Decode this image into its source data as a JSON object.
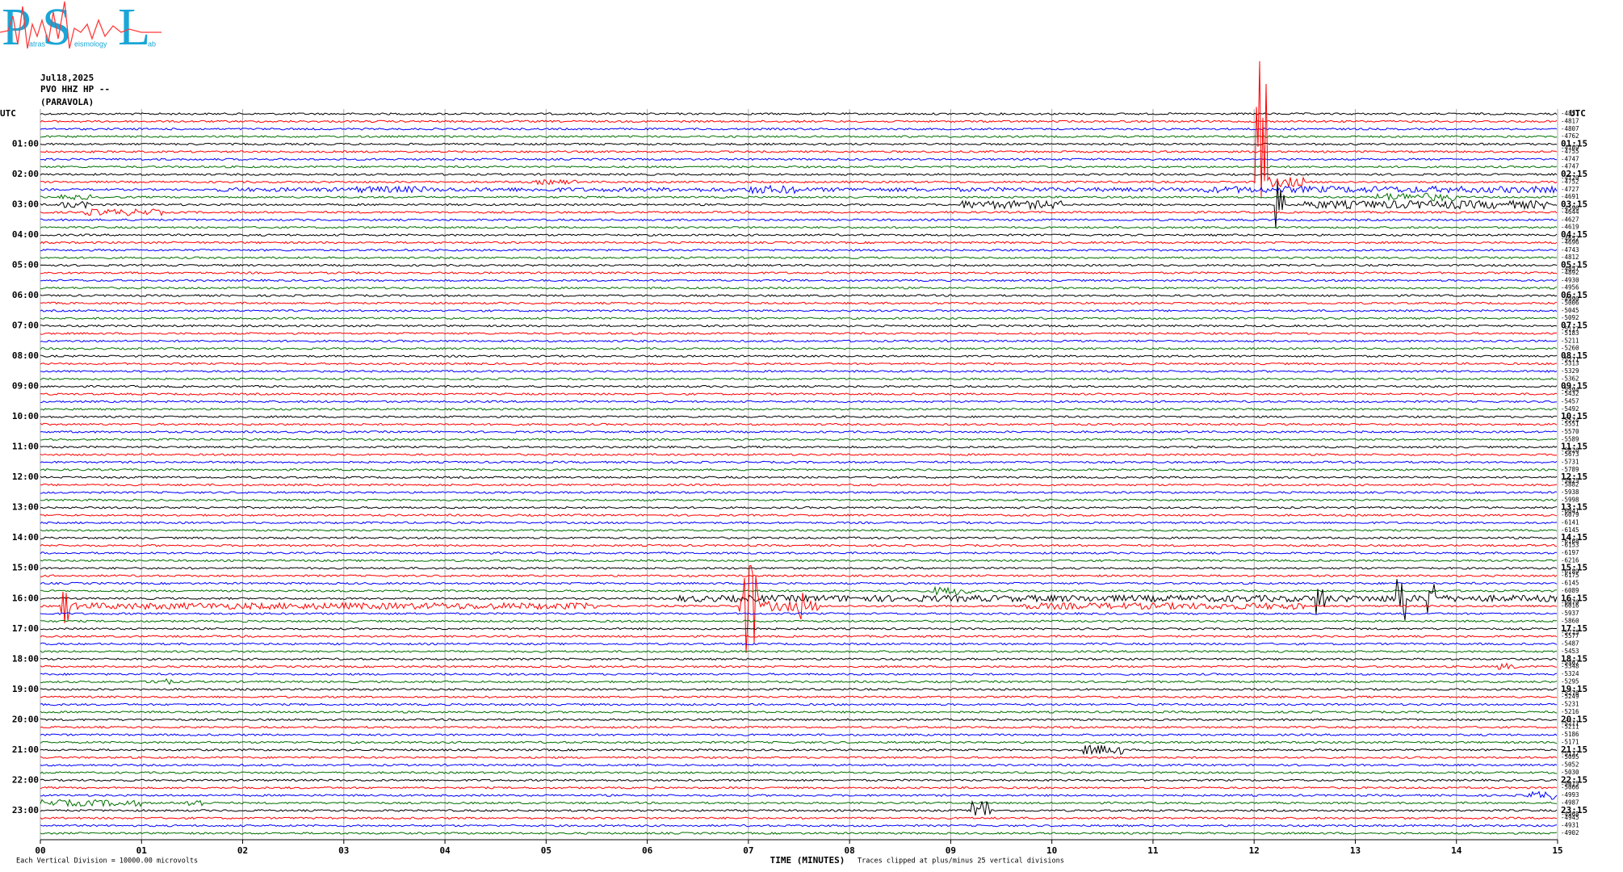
{
  "chart_data": {
    "type": "helicorder",
    "logo": {
      "letters": [
        "P",
        "S",
        "L"
      ],
      "words": [
        "atras",
        "eismology",
        "ab"
      ]
    },
    "date": "Jul18,2025",
    "station": "PVO HHZ HP --",
    "location": "(PARAVOLA)",
    "left_labels": [
      "UTC",
      "01:00",
      "02:00",
      "03:00",
      "04:00",
      "05:00",
      "06:00",
      "07:00",
      "08:00",
      "09:00",
      "10:00",
      "11:00",
      "12:00",
      "13:00",
      "14:00",
      "15:00",
      "16:00",
      "17:00",
      "18:00",
      "19:00",
      "20:00",
      "21:00",
      "22:00",
      "23:00"
    ],
    "right_labels": [
      "UTC",
      "01:15",
      "02:15",
      "03:15",
      "04:15",
      "05:15",
      "06:15",
      "07:15",
      "08:15",
      "09:15",
      "10:15",
      "11:15",
      "12:15",
      "13:15",
      "14:15",
      "15:15",
      "16:15",
      "17:15",
      "18:15",
      "19:15",
      "20:15",
      "21:15",
      "22:15",
      "23:15"
    ],
    "trace_offsets": [
      -4851,
      -4817,
      -4807,
      -4762,
      -4769,
      -4755,
      -4747,
      -4747,
      -4720,
      -4752,
      -4727,
      -4691,
      -4596,
      -4644,
      -4627,
      -4619,
      -4652,
      -4696,
      -4743,
      -4812,
      -4857,
      -4892,
      -4930,
      -4956,
      -4990,
      -5006,
      -5045,
      -5092,
      -5117,
      -5183,
      -5211,
      -5260,
      -5271,
      -5313,
      -5329,
      -5362,
      -5394,
      -5432,
      -5457,
      -5492,
      -5524,
      -5551,
      -5570,
      -5589,
      -5626,
      -5673,
      -5731,
      -5789,
      -5825,
      -5882,
      -5938,
      -5998,
      -6041,
      -6079,
      -6141,
      -6145,
      -6168,
      -6153,
      -6197,
      -6216,
      -6189,
      -6175,
      -6145,
      -6089,
      -6070,
      -6016,
      -5937,
      -5860,
      -5715,
      -5577,
      -5487,
      -5453,
      -5367,
      -5348,
      -5324,
      -5295,
      -5276,
      -5249,
      -5231,
      -5216,
      -5211,
      -5211,
      -5186,
      -5171,
      -5137,
      -5095,
      -5052,
      -5030,
      -5015,
      -5066,
      -4993,
      -4987,
      -4968,
      -4945,
      -4931,
      -4902
    ],
    "colors": [
      "#000000",
      "#ff0000",
      "#0000ff",
      "#007000"
    ],
    "xlim": [
      0,
      15
    ],
    "xticks": [
      {
        "value": 0,
        "label": "00"
      },
      {
        "value": 1,
        "label": "01"
      },
      {
        "value": 2,
        "label": "02"
      },
      {
        "value": 3,
        "label": "03"
      },
      {
        "value": 4,
        "label": "04"
      },
      {
        "value": 5,
        "label": "05"
      },
      {
        "value": 6,
        "label": "06"
      },
      {
        "value": 7,
        "label": "07"
      },
      {
        "value": 8,
        "label": "08"
      },
      {
        "value": 9,
        "label": "09"
      },
      {
        "value": 10,
        "label": "10"
      },
      {
        "value": 11,
        "label": "11"
      },
      {
        "value": 12,
        "label": "12"
      },
      {
        "value": 13,
        "label": "13"
      },
      {
        "value": 14,
        "label": "14"
      },
      {
        "value": 15,
        "label": "15"
      }
    ],
    "xlabel": "TIME (MINUTES)",
    "scale_note": "Each Vertical Division = 10000.00 microvolts",
    "clip_note": "Traces clipped at plus/minus 25 vertical divisions",
    "grid": true
  }
}
